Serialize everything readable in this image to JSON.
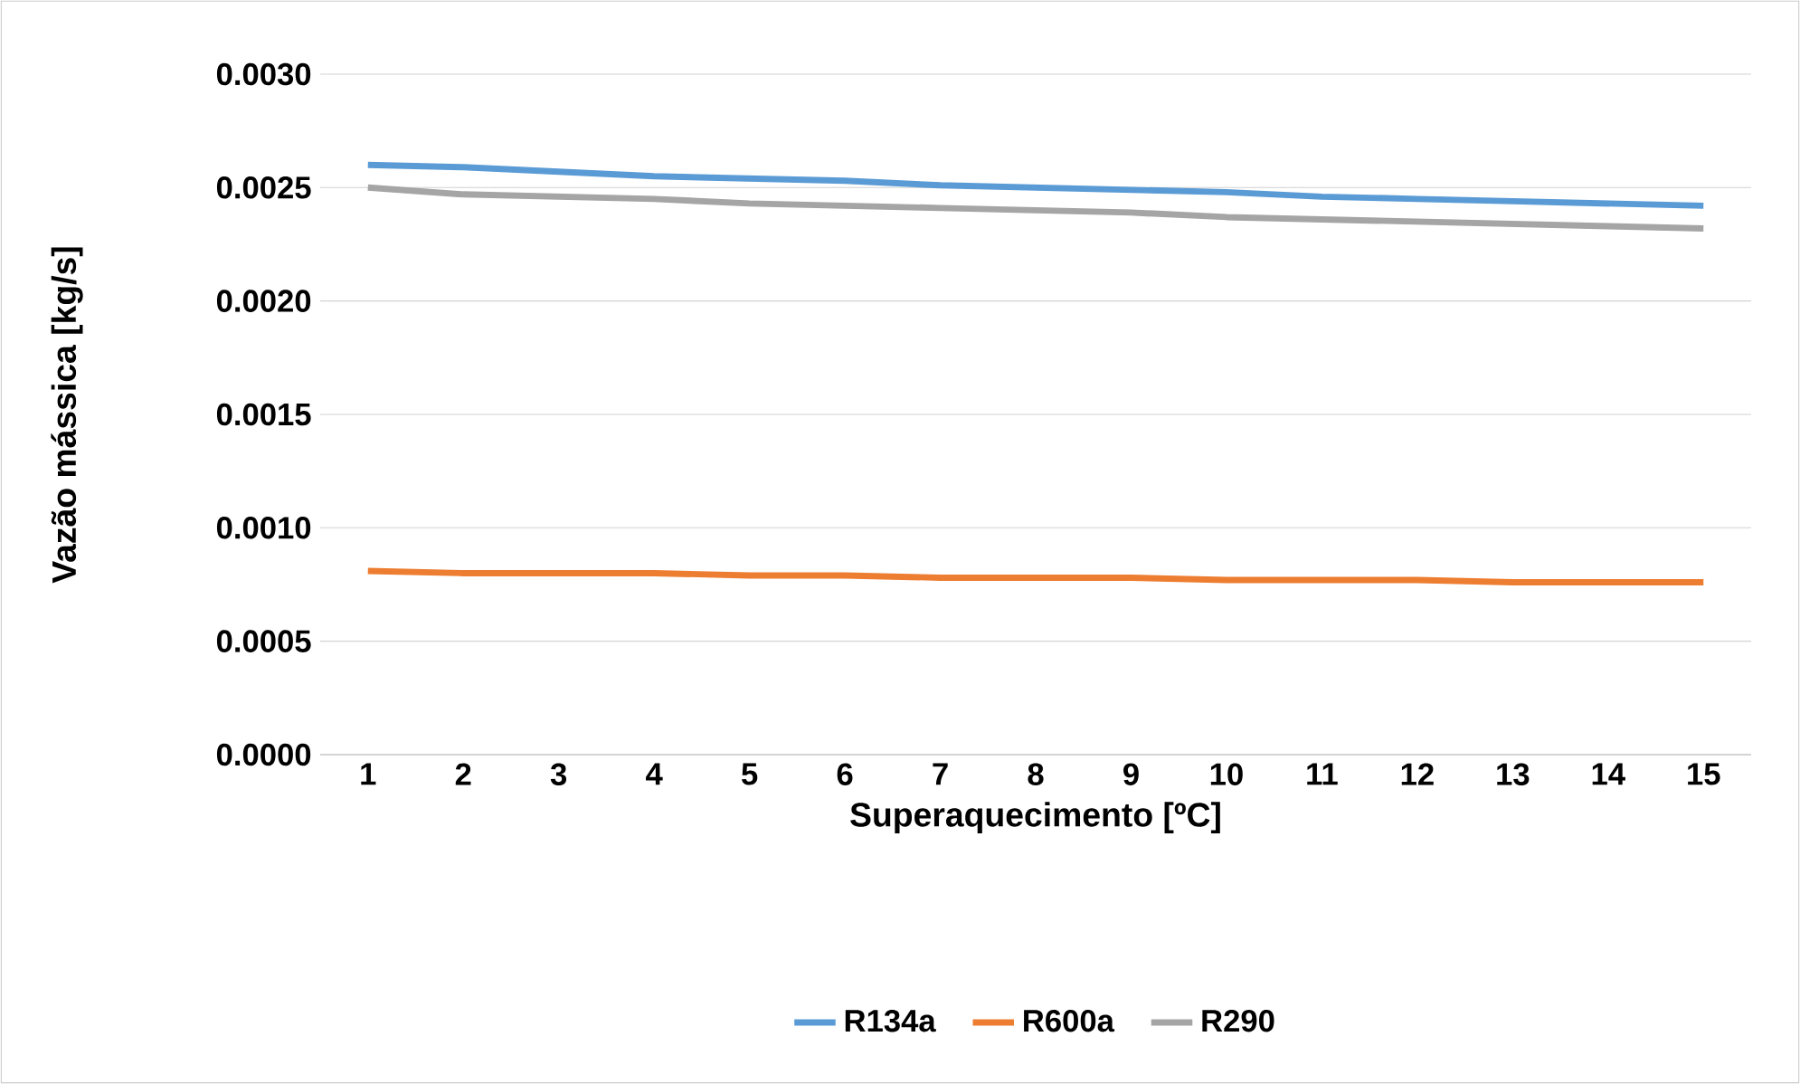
{
  "chart_data": {
    "type": "line",
    "xlabel": "Superaquecimento [ºC]",
    "ylabel": "Vazão mássica [kg/s]",
    "categories": [
      "1",
      "2",
      "3",
      "4",
      "5",
      "6",
      "7",
      "8",
      "9",
      "10",
      "11",
      "12",
      "13",
      "14",
      "15"
    ],
    "series": [
      {
        "name": "R134a",
        "color": "#5b9bd5",
        "values": [
          0.0026,
          0.00259,
          0.00257,
          0.00255,
          0.00254,
          0.00253,
          0.00251,
          0.0025,
          0.00249,
          0.00248,
          0.00246,
          0.00245,
          0.00244,
          0.00243,
          0.00242
        ]
      },
      {
        "name": "R600a",
        "color": "#ed7d31",
        "values": [
          0.00081,
          0.0008,
          0.0008,
          0.0008,
          0.00079,
          0.00079,
          0.00078,
          0.00078,
          0.00078,
          0.00077,
          0.00077,
          0.00077,
          0.00076,
          0.00076,
          0.00076
        ]
      },
      {
        "name": "R290",
        "color": "#a5a5a5",
        "values": [
          0.0025,
          0.00247,
          0.00246,
          0.00245,
          0.00243,
          0.00242,
          0.00241,
          0.0024,
          0.00239,
          0.00237,
          0.00236,
          0.00235,
          0.00234,
          0.00233,
          0.00232
        ]
      }
    ],
    "ylim": [
      0,
      0.003
    ],
    "yticks": [
      {
        "value": 0,
        "label": "0.0000"
      },
      {
        "value": 0.0005,
        "label": "0.0005"
      },
      {
        "value": 0.001,
        "label": "0.0010"
      },
      {
        "value": 0.0015,
        "label": "0.0015"
      },
      {
        "value": 0.002,
        "label": "0.0020"
      },
      {
        "value": 0.0025,
        "label": "0.0025"
      },
      {
        "value": 0.003,
        "label": "0.0030"
      }
    ],
    "grid": "y",
    "legend": "bottom",
    "marker": "none",
    "line_style": "solid"
  }
}
